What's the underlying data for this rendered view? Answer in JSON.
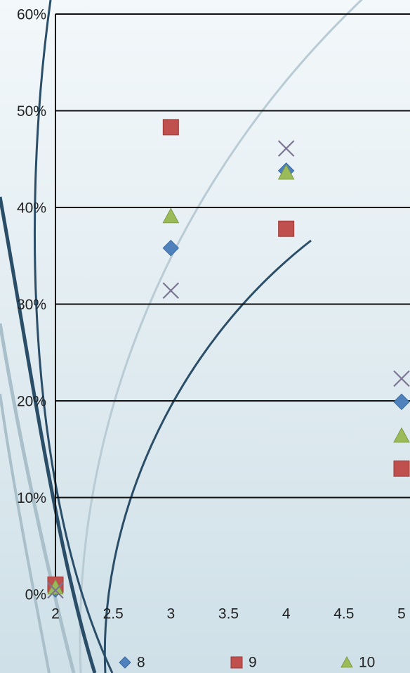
{
  "chart_data": {
    "type": "scatter",
    "x": [
      2,
      3,
      4,
      5
    ],
    "series": [
      {
        "name": "8",
        "color": "#4f81bd",
        "marker": "diamond",
        "values": [
          0.5,
          35.8,
          43.8,
          19.9
        ]
      },
      {
        "name": "9",
        "color": "#c0504d",
        "marker": "square",
        "values": [
          1.0,
          48.3,
          37.8,
          13.0
        ]
      },
      {
        "name": "10",
        "color": "#9bbb59",
        "marker": "triangle",
        "values": [
          0.7,
          39.1,
          43.6,
          16.4
        ]
      },
      {
        "color": "#7d7594",
        "marker": "x",
        "values": [
          0.4,
          31.4,
          46.1,
          22.3
        ]
      }
    ],
    "xlim": [
      2,
      5
    ],
    "xticks": [
      2,
      2.5,
      3,
      3.5,
      4,
      4.5,
      5
    ],
    "ylim": [
      0,
      60
    ],
    "yticks": [
      {
        "value": 0,
        "label": "0%"
      },
      {
        "value": 10,
        "label": "10%"
      },
      {
        "value": 20,
        "label": "20%"
      },
      {
        "value": 30,
        "label": "30%"
      },
      {
        "value": 40,
        "label": "40%"
      },
      {
        "value": 50,
        "label": "50%"
      },
      {
        "value": 60,
        "label": "60%"
      }
    ],
    "grid": true,
    "legend": "bottom"
  }
}
